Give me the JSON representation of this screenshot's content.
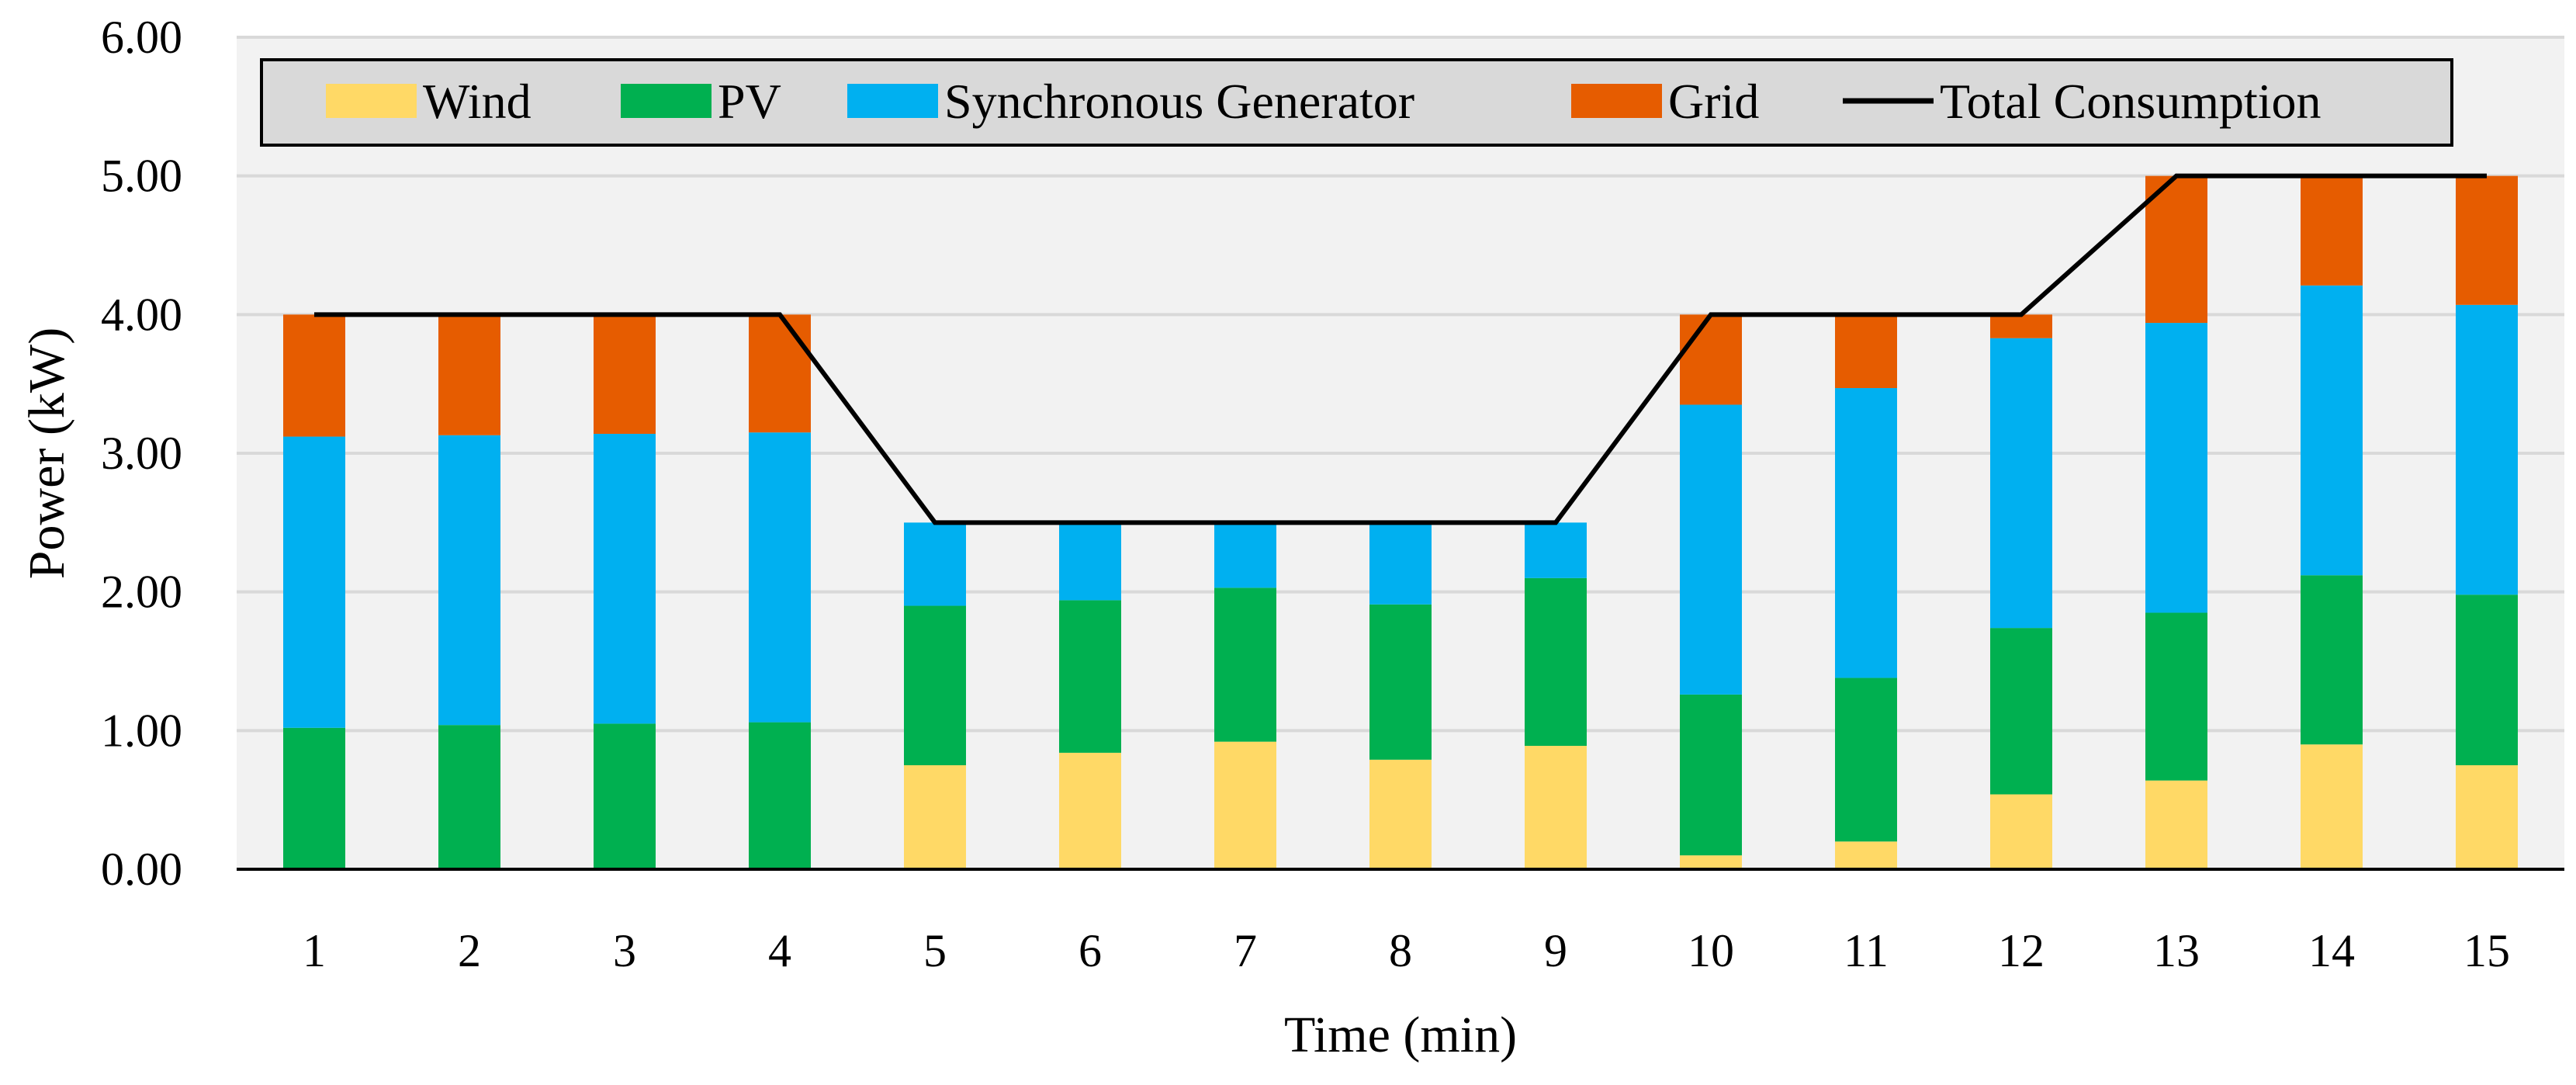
{
  "chart_data": {
    "type": "bar",
    "stacked": true,
    "categories": [
      "1",
      "2",
      "3",
      "4",
      "5",
      "6",
      "7",
      "8",
      "9",
      "10",
      "11",
      "12",
      "13",
      "14",
      "15"
    ],
    "series": [
      {
        "name": "Wind",
        "color": "#FFD966",
        "values": [
          0.0,
          0.0,
          0.0,
          0.0,
          0.75,
          0.84,
          0.92,
          0.79,
          0.89,
          0.1,
          0.2,
          0.54,
          0.64,
          0.9,
          0.75
        ]
      },
      {
        "name": "PV",
        "color": "#00B050",
        "values": [
          1.02,
          1.04,
          1.05,
          1.06,
          1.15,
          1.1,
          1.11,
          1.12,
          1.21,
          1.16,
          1.18,
          1.2,
          1.21,
          1.22,
          1.23
        ]
      },
      {
        "name": "Synchronous Generator",
        "color": "#00B0F0",
        "values": [
          2.1,
          2.09,
          2.09,
          2.09,
          0.6,
          0.56,
          0.47,
          0.59,
          0.4,
          2.09,
          2.09,
          2.09,
          2.09,
          2.09,
          2.09
        ]
      },
      {
        "name": "Grid",
        "color": "#E65C00",
        "values": [
          0.88,
          0.87,
          0.86,
          0.85,
          0.0,
          0.0,
          0.0,
          0.0,
          0.0,
          0.65,
          0.53,
          0.17,
          1.06,
          0.79,
          0.93
        ]
      }
    ],
    "line_series": {
      "name": "Total Consumption",
      "color": "#000000",
      "values": [
        4,
        4,
        4,
        4,
        2.5,
        2.5,
        2.5,
        2.5,
        2.5,
        4,
        4,
        4,
        5,
        5,
        5
      ]
    },
    "y_ticks": [
      "0.00",
      "1.00",
      "2.00",
      "3.00",
      "4.00",
      "5.00",
      "6.00"
    ],
    "ylim": [
      0,
      6
    ],
    "xlabel": "Time (min)",
    "ylabel": "Power (kW)",
    "title": "",
    "grid": true,
    "legend_position": "top"
  }
}
